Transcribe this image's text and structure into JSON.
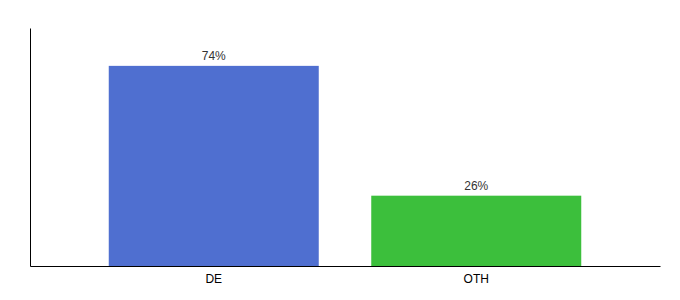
{
  "chart_data": {
    "type": "bar",
    "categories": [
      "DE",
      "OTH"
    ],
    "values": [
      74,
      26
    ],
    "value_labels": [
      "74%",
      "26%"
    ],
    "colors": [
      "#4f6fd0",
      "#3cbf3c"
    ],
    "ylim": [
      0,
      88
    ],
    "data_labels": true,
    "tick_labels": "x",
    "grid": false
  }
}
